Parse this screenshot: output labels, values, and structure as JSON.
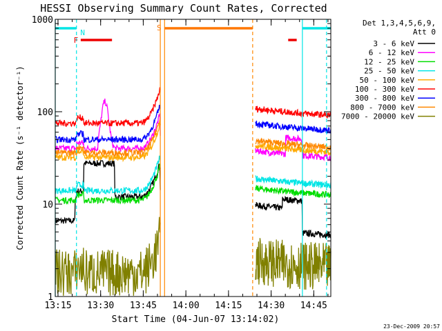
{
  "chart_data": {
    "type": "line",
    "title": "HESSI Observing Summary Count Rates, Corrected",
    "xlabel": "Start Time (04-Jun-07 13:14:02)",
    "ylabel": "Corrected Count Rate (s⁻¹ detector⁻¹)",
    "y_scale": "log",
    "xlim": [
      "13:14:02",
      "14:51:00"
    ],
    "ylim": [
      1,
      1000
    ],
    "x_ticks": [
      "13:15",
      "13:30",
      "13:45",
      "14:00",
      "14:15",
      "14:30",
      "14:45"
    ],
    "y_ticks": [
      "1",
      "10",
      "100",
      "1000"
    ],
    "footer_date": "23-Dec-2009 20:57",
    "legend": {
      "placement": "right",
      "header_line1": "Det 1,3,4,5,6,9,",
      "header_line2": "Att 0"
    },
    "series": [
      {
        "name": "3 - 6 keV",
        "color": "#000000",
        "level_before": 12,
        "level_after": 9
      },
      {
        "name": "6 - 12 keV",
        "color": "#ff00ff",
        "level_before": 40,
        "level_after": 28
      },
      {
        "name": "12 - 25 keV",
        "color": "#00dd00",
        "level_before": 11,
        "level_after": 11
      },
      {
        "name": "25 - 50 keV",
        "color": "#00e5e5",
        "level_before": 14,
        "level_after": 14
      },
      {
        "name": "50 - 100 keV",
        "color": "#ffaa00",
        "level_before": 32,
        "level_after": 32
      },
      {
        "name": "100 - 300 keV",
        "color": "#ff0000",
        "level_before": 75,
        "level_after": 80
      },
      {
        "name": "300 - 800 keV",
        "color": "#0000ff",
        "level_before": 50,
        "level_after": 55
      },
      {
        "name": "800 - 7000 keV",
        "color": "#ff8800",
        "level_before": 36,
        "level_after": 36
      },
      {
        "name": "7000 - 20000 keV",
        "color": "#808000",
        "level_before": 1.8,
        "level_after": 1.8
      }
    ],
    "flag_bars": [
      {
        "label": "",
        "color": "#00e5e5",
        "start": "13:14:02",
        "end": "13:21:30",
        "y_position": "top"
      },
      {
        "label": "N",
        "color": "#00e5e5",
        "start": "",
        "end": "",
        "y_position": "top"
      },
      {
        "label": "F",
        "color": "#ee0000",
        "start": "13:23:00",
        "end": "13:34:00",
        "y_position": "upper"
      },
      {
        "label": "S",
        "color": "#ff7700",
        "start": "13:52:30",
        "end": "14:23:30",
        "y_position": "top"
      },
      {
        "label": "",
        "color": "#ee0000",
        "start": "14:36:00",
        "end": "14:39:00",
        "y_position": "upper"
      },
      {
        "label": "",
        "color": "#00e5e5",
        "start": "14:41:00",
        "end": "14:51:00",
        "y_position": "top"
      }
    ],
    "vertical_markers": [
      {
        "time": "13:14:02",
        "color": "#00e5e5",
        "style": "solid"
      },
      {
        "time": "13:21:30",
        "color": "#00e5e5",
        "style": "dashed"
      },
      {
        "time": "13:51:00",
        "color": "#ff8800",
        "style": "solid"
      },
      {
        "time": "13:52:30",
        "color": "#ff8800",
        "style": "solid"
      },
      {
        "time": "14:23:30",
        "color": "#ff8800",
        "style": "dashed"
      },
      {
        "time": "14:41:00",
        "color": "#00e5e5",
        "style": "solid"
      },
      {
        "time": "14:49:30",
        "color": "#00e5e5",
        "style": "dashed"
      }
    ],
    "data_gap": {
      "start": "13:51:00",
      "end": "14:24:30"
    }
  }
}
